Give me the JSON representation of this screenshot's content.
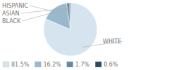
{
  "chart_data": {
    "type": "pie",
    "categories": [
      "WHITE",
      "HISPANIC",
      "ASIAN",
      "BLACK"
    ],
    "values": [
      81.5,
      16.2,
      1.7,
      0.6
    ],
    "value_labels": [
      "81.5%",
      "16.2%",
      "1.7%",
      "0.6%"
    ],
    "colors": [
      "#d6e4ef",
      "#9ab8cc",
      "#5f8aaa",
      "#2b4a66"
    ],
    "legend": "bottom"
  }
}
